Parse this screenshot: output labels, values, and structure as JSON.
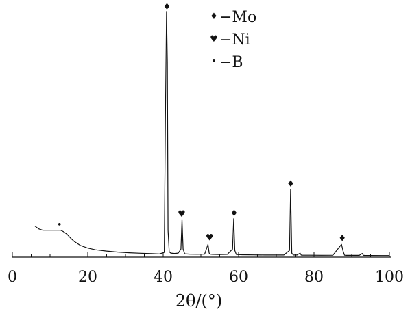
{
  "chart_data": {
    "type": "line",
    "title": "",
    "xlabel": "2θ/(°)",
    "ylabel": "",
    "xlim": [
      0,
      100
    ],
    "xticks": [
      0,
      20,
      40,
      60,
      80,
      100
    ],
    "tick_labels": [
      "0",
      "20",
      "40",
      "60",
      "80",
      "100"
    ],
    "grid": false,
    "legend_position": "top-center",
    "line_color": "#111111",
    "series": [
      {
        "x": [
          6,
          7,
          8,
          9,
          10,
          11,
          12,
          12.8,
          13.5,
          14.5,
          15.5,
          16.5,
          18,
          20,
          22,
          25,
          28,
          31,
          34,
          37,
          39,
          40.3,
          40.6,
          40.9,
          41.1,
          41.3,
          41.6,
          42,
          43,
          44,
          44.7,
          45.0,
          45.3,
          45.7,
          47,
          49,
          51,
          51.9,
          52.2,
          52.5,
          53,
          55,
          57,
          58.4,
          58.7,
          59.0,
          59.4,
          61,
          64,
          67,
          70,
          72,
          73.5,
          73.8,
          74.1,
          74.5,
          75.5,
          76.3,
          76.6,
          77,
          79,
          82,
          85,
          87.3,
          87.7,
          88.1,
          88.6,
          90,
          92,
          92.8,
          93.1,
          93.5,
          95,
          98,
          100
        ],
        "y": [
          46,
          42,
          40,
          40,
          40,
          40,
          40,
          40,
          38,
          34,
          28,
          23,
          17.5,
          13.5,
          11,
          9,
          7.5,
          6.5,
          5.8,
          5.2,
          4.8,
          7,
          210,
          365,
          290,
          40,
          8,
          6,
          5.5,
          6,
          12,
          56,
          12,
          5,
          4.5,
          4.3,
          4.5,
          19,
          6,
          4.4,
          4.2,
          4,
          4.2,
          12,
          57,
          10,
          4,
          3.6,
          3.4,
          3.2,
          3.1,
          3.2,
          10,
          101,
          6,
          3.2,
          3.1,
          6,
          3,
          2.8,
          2.8,
          2.7,
          2.8,
          19,
          9,
          2.8,
          2.6,
          2.6,
          2.6,
          5.5,
          2.7,
          2.5,
          2.4,
          2.3,
          2.3
        ]
      }
    ],
    "legend": [
      {
        "symbol": "♦",
        "label": "−Mo"
      },
      {
        "symbol": "♥",
        "label": "−Ni"
      },
      {
        "symbol": "•",
        "label": "−B"
      }
    ],
    "annotations": [
      {
        "symbol": "•",
        "x": 12.5,
        "y": 48,
        "phase": "B"
      },
      {
        "symbol": "♦",
        "x": 41.0,
        "y": 372,
        "phase": "Mo"
      },
      {
        "symbol": "♥",
        "x": 44.9,
        "y": 64,
        "phase": "Ni"
      },
      {
        "symbol": "♥",
        "x": 52.3,
        "y": 29,
        "phase": "Ni"
      },
      {
        "symbol": "♦",
        "x": 58.8,
        "y": 65,
        "phase": "Mo"
      },
      {
        "symbol": "♦",
        "x": 73.8,
        "y": 109,
        "phase": "Mo"
      },
      {
        "symbol": "♦",
        "x": 87.5,
        "y": 28,
        "phase": "Mo"
      }
    ]
  }
}
